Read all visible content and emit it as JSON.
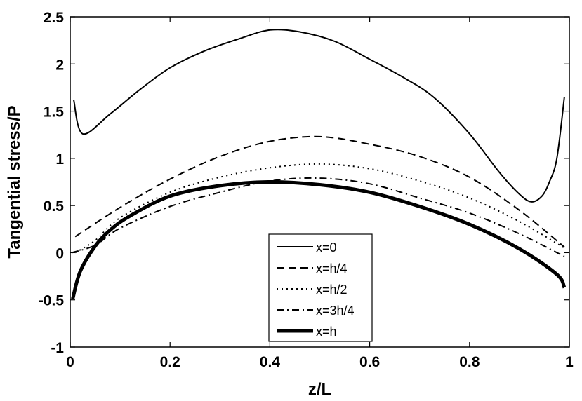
{
  "chart_data": {
    "type": "line",
    "title": "",
    "xlabel": "z/L",
    "ylabel": "Tangential stress/P",
    "xlim": [
      0,
      1
    ],
    "ylim": [
      -1,
      2.5
    ],
    "xticks": [
      0,
      0.2,
      0.4,
      0.6,
      0.8,
      1
    ],
    "xtick_labels": [
      "0",
      "0.2",
      "0.4",
      "0.6",
      "0.8",
      "1"
    ],
    "yticks": [
      -1,
      -0.5,
      0,
      0.5,
      1,
      1.5,
      2,
      2.5
    ],
    "ytick_labels": [
      "-1",
      "-0.5",
      "0",
      "0.5",
      "1",
      "1.5",
      "2",
      "2.5"
    ],
    "grid": false,
    "legend_position": "lower center",
    "series": [
      {
        "name": "x=0",
        "style": "solid",
        "width": 2,
        "x": [
          0.007,
          0.025,
          0.08,
          0.14,
          0.2,
          0.27,
          0.34,
          0.4,
          0.46,
          0.53,
          0.6,
          0.67,
          0.73,
          0.8,
          0.86,
          0.9,
          0.924,
          0.945,
          0.96,
          0.975,
          0.99
        ],
        "y": [
          1.62,
          1.26,
          1.47,
          1.73,
          1.96,
          2.14,
          2.27,
          2.36,
          2.34,
          2.24,
          2.05,
          1.85,
          1.64,
          1.26,
          0.85,
          0.62,
          0.54,
          0.6,
          0.75,
          1.0,
          1.65
        ]
      },
      {
        "name": "x=h/4",
        "style": "dashed",
        "width": 2,
        "x": [
          0.01,
          0.1,
          0.2,
          0.3,
          0.4,
          0.5,
          0.6,
          0.7,
          0.8,
          0.9,
          0.99
        ],
        "y": [
          0.17,
          0.48,
          0.78,
          1.02,
          1.18,
          1.23,
          1.15,
          1.02,
          0.8,
          0.45,
          0.06
        ]
      },
      {
        "name": "x=h/2",
        "style": "dotted",
        "width": 2,
        "x": [
          0.01,
          0.05,
          0.1,
          0.2,
          0.3,
          0.4,
          0.5,
          0.6,
          0.7,
          0.8,
          0.9,
          0.99
        ],
        "y": [
          0.0,
          0.13,
          0.37,
          0.64,
          0.8,
          0.9,
          0.94,
          0.89,
          0.76,
          0.58,
          0.33,
          0.05
        ]
      },
      {
        "name": "x=3h/4",
        "style": "dashdot",
        "width": 2,
        "x": [
          0.003,
          0.05,
          0.1,
          0.2,
          0.3,
          0.4,
          0.5,
          0.6,
          0.7,
          0.8,
          0.9,
          0.99
        ],
        "y": [
          0.0,
          0.08,
          0.26,
          0.49,
          0.64,
          0.76,
          0.79,
          0.73,
          0.58,
          0.42,
          0.2,
          -0.04
        ]
      },
      {
        "name": "x=h",
        "style": "solid",
        "width": 5,
        "x": [
          0.005,
          0.02,
          0.05,
          0.08,
          0.12,
          0.2,
          0.3,
          0.4,
          0.5,
          0.6,
          0.7,
          0.8,
          0.9,
          0.975,
          0.99
        ],
        "y": [
          -0.49,
          -0.2,
          0.07,
          0.24,
          0.39,
          0.6,
          0.71,
          0.75,
          0.72,
          0.64,
          0.49,
          0.3,
          0.04,
          -0.23,
          -0.37
        ]
      }
    ]
  }
}
